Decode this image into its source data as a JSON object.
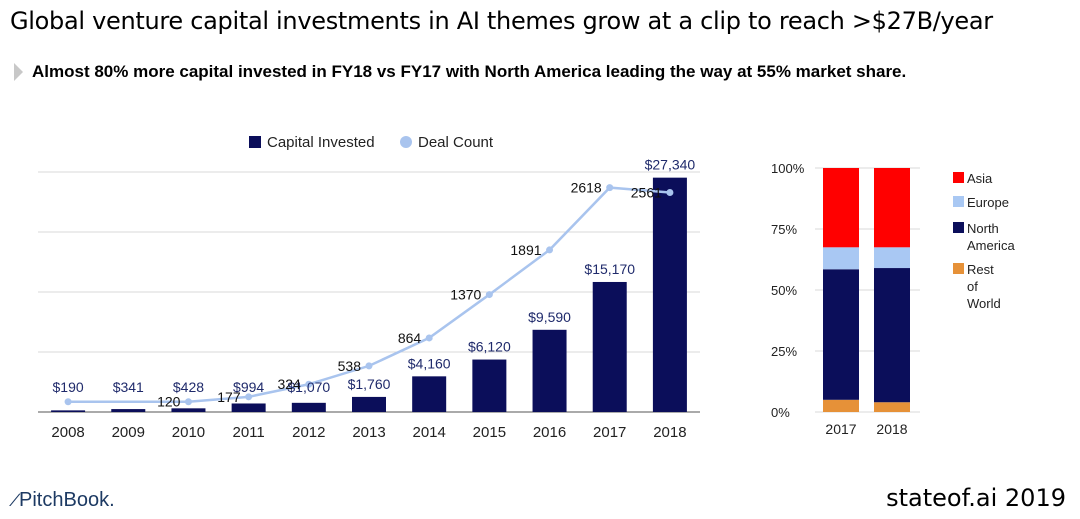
{
  "title": "Global venture capital investments in AI themes grow at a clip to reach >$27B/year",
  "subtitle": "Almost 80% more capital invested in FY18 vs FY17 with North America leading the way at 55% market share.",
  "footer": {
    "logo": "PitchBook.",
    "brand": "stateof.ai 2019"
  },
  "colors": {
    "capital": "#0b0e5a",
    "deals": "#a9c4ee",
    "asia": "#ff0000",
    "europe": "#a9c8f3",
    "north_america": "#0b0e5a",
    "rest_of_world": "#e69138"
  },
  "chart_data": [
    {
      "type": "bar",
      "categories": [
        "2008",
        "2009",
        "2010",
        "2011",
        "2012",
        "2013",
        "2014",
        "2015",
        "2016",
        "2017",
        "2018"
      ],
      "legend": [
        "Capital Invested",
        "Deal Count"
      ],
      "legend_position": "top",
      "grid": true,
      "series": [
        {
          "name": "Capital Invested",
          "type": "bar",
          "values": [
            190,
            341,
            428,
            994,
            1070,
            1760,
            4160,
            6120,
            9590,
            15170,
            27340
          ],
          "labels": [
            "$190",
            "$341",
            "$428",
            "$994",
            "$1,070",
            "$1,760",
            "$4,160",
            "$6,120",
            "$9,590",
            "$15,170",
            "$27,340"
          ]
        },
        {
          "name": "Deal Count",
          "type": "line",
          "values": [
            null,
            null,
            120,
            177,
            324,
            538,
            864,
            1370,
            1891,
            2618,
            2561
          ],
          "labels": [
            "",
            "",
            "120",
            "177",
            "324",
            "538",
            "864",
            "1370",
            "1891",
            "2618",
            "2561"
          ]
        }
      ],
      "ylim": [
        0,
        28000
      ],
      "ylim_deals": [
        0,
        2800
      ]
    },
    {
      "type": "bar",
      "stacked": true,
      "categories": [
        "2017",
        "2018"
      ],
      "yticks": [
        "100%",
        "75%",
        "50%",
        "25%",
        "0%"
      ],
      "ylim": [
        0,
        100
      ],
      "legend_position": "right",
      "series": [
        {
          "name": "Rest of World",
          "values": [
            5,
            4
          ]
        },
        {
          "name": "North America",
          "values": [
            53.5,
            55
          ]
        },
        {
          "name": "Europe",
          "values": [
            9,
            8.5
          ]
        },
        {
          "name": "Asia",
          "values": [
            32.5,
            32.5
          ]
        }
      ],
      "legend": [
        "Asia",
        "Europe",
        "North America",
        "Rest of World"
      ]
    }
  ]
}
